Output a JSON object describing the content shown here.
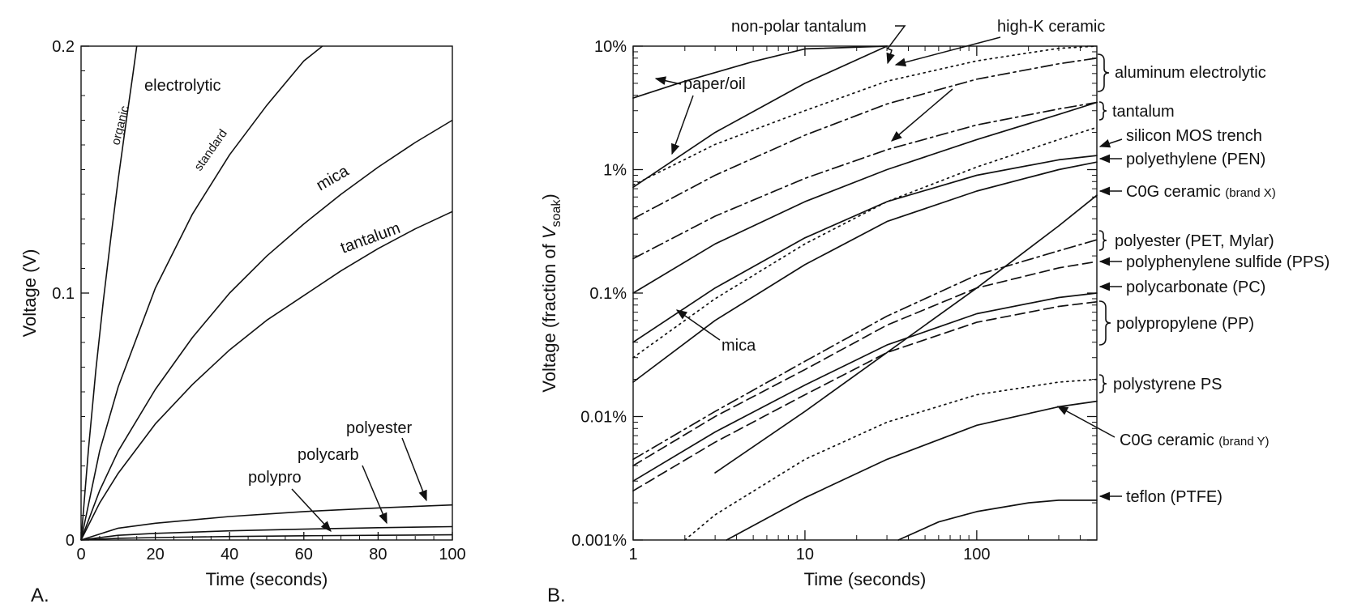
{
  "chart_data": [
    {
      "panel_label": "A.",
      "type": "line",
      "xlabel": "Time (seconds)",
      "ylabel": "Voltage (V)",
      "xlim": [
        0,
        100
      ],
      "ylim": [
        0,
        0.2
      ],
      "x_ticks": [
        "0",
        "20",
        "40",
        "60",
        "80",
        "100"
      ],
      "y_ticks": [
        "0",
        "0.1",
        "0.2"
      ],
      "grid": false,
      "series": [
        {
          "name": "organic electrolytic",
          "x": [
            0,
            2,
            4,
            6,
            8,
            10,
            12,
            14,
            15
          ],
          "y": [
            0,
            0.037,
            0.069,
            0.097,
            0.122,
            0.146,
            0.168,
            0.189,
            0.2
          ]
        },
        {
          "name": "standard electrolytic",
          "x": [
            0,
            5,
            10,
            20,
            30,
            40,
            50,
            60,
            65
          ],
          "y": [
            0,
            0.036,
            0.062,
            0.102,
            0.132,
            0.156,
            0.176,
            0.194,
            0.2
          ]
        },
        {
          "name": "mica",
          "x": [
            0,
            5,
            10,
            20,
            30,
            40,
            50,
            60,
            70,
            80,
            90,
            100
          ],
          "y": [
            0,
            0.02,
            0.036,
            0.061,
            0.082,
            0.1,
            0.115,
            0.128,
            0.14,
            0.151,
            0.161,
            0.17
          ]
        },
        {
          "name": "tantalum",
          "x": [
            0,
            5,
            10,
            20,
            30,
            40,
            50,
            60,
            70,
            80,
            90,
            100
          ],
          "y": [
            0,
            0.015,
            0.027,
            0.047,
            0.063,
            0.077,
            0.089,
            0.099,
            0.109,
            0.118,
            0.126,
            0.133
          ]
        },
        {
          "name": "polyester",
          "x": [
            0,
            10,
            20,
            40,
            60,
            80,
            100
          ],
          "y": [
            0,
            0.0048,
            0.0068,
            0.0095,
            0.0115,
            0.013,
            0.0142
          ]
        },
        {
          "name": "polycarb",
          "x": [
            0,
            10,
            20,
            40,
            60,
            80,
            100
          ],
          "y": [
            0,
            0.0019,
            0.0027,
            0.0037,
            0.0044,
            0.005,
            0.0054
          ]
        },
        {
          "name": "polypro",
          "x": [
            0,
            10,
            20,
            40,
            60,
            80,
            100
          ],
          "y": [
            0,
            0.0007,
            0.001,
            0.0014,
            0.0017,
            0.0019,
            0.0021
          ]
        }
      ],
      "annotations": {
        "organic": "organic",
        "electrolytic": "electrolytic",
        "standard": "standard",
        "mica": "mica",
        "tantalum": "tantalum",
        "polyester": "polyester",
        "polycarb": "polycarb",
        "polypro": "polypro"
      }
    },
    {
      "panel_label": "B.",
      "type": "line",
      "xscale": "log",
      "yscale": "log",
      "xlabel": "Time (seconds)",
      "ylabel_main": "Voltage (fraction of ",
      "ylabel_v": "V",
      "ylabel_sub": "soak",
      "ylabel_close": ")",
      "xlim": [
        1,
        500
      ],
      "ylim": [
        "0.001%",
        "10%"
      ],
      "x_ticks": [
        "1",
        "10",
        "100"
      ],
      "y_ticks": [
        "0.001%",
        "0.01%",
        "0.1%",
        "1%",
        "10%"
      ],
      "grid": false,
      "series": [
        {
          "name": "paper/oil",
          "style": "solid",
          "x": [
            1,
            2,
            5,
            10,
            30
          ],
          "y": [
            "3.8%",
            "5.2%",
            "7.5%",
            "9.5%",
            "10%"
          ]
        },
        {
          "name": "non-polar tantalum",
          "style": "dotted",
          "x": [
            1,
            3,
            10,
            30,
            100,
            300,
            500
          ],
          "y": [
            "0.75%",
            "1.6%",
            "3.0%",
            "5.2%",
            "7.6%",
            "9.6%",
            "10%"
          ]
        },
        {
          "name": "aluminum electrolytic (a)",
          "style": "solid",
          "x": [
            1,
            3,
            10,
            30
          ],
          "y": [
            "0.72%",
            "2.0%",
            "5.0%",
            "10%"
          ]
        },
        {
          "name": "aluminum electrolytic (b)",
          "style": "dash-dot",
          "x": [
            1,
            3,
            10,
            30,
            100,
            300,
            500
          ],
          "y": [
            "0.4%",
            "0.9%",
            "1.9%",
            "3.4%",
            "5.4%",
            "7.2%",
            "8.0%"
          ]
        },
        {
          "name": "high-K ceramic",
          "style": "dash-dot",
          "x": [
            1,
            3,
            10,
            30,
            100,
            300,
            500
          ],
          "y": [
            "0.19%",
            "0.42%",
            "0.85%",
            "1.45%",
            "2.3%",
            "3.1%",
            "3.5%"
          ]
        },
        {
          "name": "tantalum",
          "style": "solid",
          "x": [
            1,
            3,
            10,
            30,
            100,
            300,
            500
          ],
          "y": [
            "0.1%",
            "0.25%",
            "0.55%",
            "1.0%",
            "1.75%",
            "2.8%",
            "3.5%"
          ]
        },
        {
          "name": "silicon MOS trench",
          "style": "dotted",
          "x": [
            1,
            3,
            10,
            30,
            100,
            300,
            500
          ],
          "y": [
            "0.03%",
            "0.09%",
            "0.25%",
            "0.55%",
            "1.05%",
            "1.75%",
            "2.2%"
          ]
        },
        {
          "name": "polyethylene (PEN)",
          "style": "solid",
          "x": [
            1,
            3,
            10,
            30,
            100,
            300,
            500
          ],
          "y": [
            "0.04%",
            "0.11%",
            "0.28%",
            "0.55%",
            "0.9%",
            "1.2%",
            "1.3%"
          ]
        },
        {
          "name": "mica",
          "style": "solid",
          "x": [
            1,
            3,
            10,
            30,
            100,
            300,
            500
          ],
          "y": [
            "0.019%",
            "0.06%",
            "0.17%",
            "0.38%",
            "0.67%",
            "1.0%",
            "1.15%"
          ]
        },
        {
          "name": "C0G ceramic (brand X)",
          "style": "solid",
          "x": [
            3,
            10,
            30,
            100,
            300,
            500
          ],
          "y": [
            "0.0035%",
            "0.011%",
            "0.033%",
            "0.11%",
            "0.35%",
            "0.62%"
          ]
        },
        {
          "name": "polyester (PET, Mylar)",
          "style": "dash-dot",
          "x": [
            1,
            3,
            10,
            30,
            100,
            300,
            500
          ],
          "y": [
            "0.0045%",
            "0.011%",
            "0.028%",
            "0.065%",
            "0.14%",
            "0.22%",
            "0.27%"
          ]
        },
        {
          "name": "polyphenylene sulfide (PPS)",
          "style": "dashed",
          "x": [
            1,
            3,
            10,
            30,
            100,
            300,
            500
          ],
          "y": [
            "0.004%",
            "0.01%",
            "0.024%",
            "0.055%",
            "0.11%",
            "0.16%",
            "0.18%"
          ]
        },
        {
          "name": "polycarbonate (PC)",
          "style": "solid",
          "x": [
            1,
            3,
            10,
            30,
            100,
            300,
            500
          ],
          "y": [
            "0.003%",
            "0.0075%",
            "0.018%",
            "0.038%",
            "0.068%",
            "0.092%",
            "0.1%"
          ]
        },
        {
          "name": "polypropylene (PP)",
          "style": "dashed",
          "x": [
            1,
            3,
            10,
            30,
            100,
            300,
            500
          ],
          "y": [
            "0.0025%",
            "0.0062%",
            "0.015%",
            "0.033%",
            "0.058%",
            "0.078%",
            "0.085%"
          ]
        },
        {
          "name": "polystyrene PS",
          "style": "dotted",
          "x": [
            2,
            3,
            10,
            30,
            100,
            300,
            500
          ],
          "y": [
            "0.001%",
            "0.0016%",
            "0.0045%",
            "0.009%",
            "0.015%",
            "0.019%",
            "0.02%"
          ]
        },
        {
          "name": "C0G ceramic (brand Y)",
          "style": "solid",
          "x": [
            3.5,
            10,
            30,
            100,
            300,
            500
          ],
          "y": [
            "0.001%",
            "0.0022%",
            "0.0045%",
            "0.0085%",
            "0.012%",
            "0.0133%"
          ]
        },
        {
          "name": "teflon (PTFE)",
          "style": "solid",
          "x": [
            35,
            60,
            100,
            200,
            300,
            500
          ],
          "y": [
            "0.001%",
            "0.0014%",
            "0.0017%",
            "0.002%",
            "0.0021%",
            "0.0021%"
          ]
        }
      ],
      "annotations": {
        "paper_oil": "paper/oil",
        "non_polar_tantalum": "non-polar tantalum",
        "high_k_ceramic": "high-K ceramic",
        "mica": "mica",
        "aluminum_electrolytic": "aluminum electrolytic",
        "tantalum": "tantalum",
        "silicon_mos_trench": "silicon MOS trench",
        "polyethylene": "polyethylene (PEN)",
        "c0g_x_main": "C0G ceramic ",
        "c0g_x_sub": "(brand X)",
        "polyester": "polyester (PET, Mylar)",
        "pps": "polyphenylene sulfide (PPS)",
        "pc": "polycarbonate (PC)",
        "pp": "polypropylene (PP)",
        "ps": "polystyrene PS",
        "c0g_y_main": "C0G ceramic ",
        "c0g_y_sub": "(brand Y)",
        "teflon": "teflon (PTFE)"
      }
    }
  ]
}
